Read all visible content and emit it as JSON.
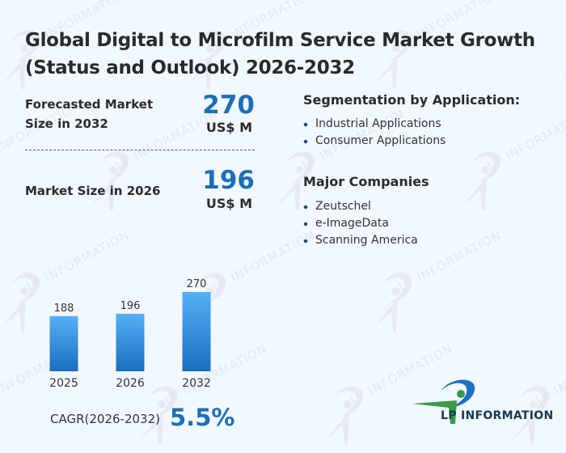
{
  "title": "Global Digital to Microfilm Service Market Growth (Status and Outlook) 2026-2032",
  "stats": {
    "forecast": {
      "label_line1": "Forecasted Market",
      "label_line2": "Size in 2032",
      "value": "270",
      "unit": "US$ M"
    },
    "current": {
      "label": "Market Size in 2026",
      "value": "196",
      "unit": "US$ M"
    }
  },
  "segmentation": {
    "title": "Segmentation by Application:",
    "items": [
      "Industrial Applications",
      "Consumer Applications"
    ]
  },
  "companies": {
    "title": "Major Companies",
    "items": [
      "Zeutschel",
      "e-ImageData",
      "Scanning America"
    ]
  },
  "cagr": {
    "label": "CAGR(2026-2032)",
    "value": "5.5%"
  },
  "logo": {
    "text": "LP INFORMATION"
  },
  "watermark_text": "LP INFORMATION",
  "colors": {
    "accent": "#1b6fb8",
    "bar_top": "#56b0f5",
    "bar_bottom": "#1a6fbf",
    "logo_green": "#3a9a4a",
    "logo_blue": "#1e6fc0"
  },
  "chart_data": {
    "type": "bar",
    "title": "",
    "categories": [
      "2025",
      "2026",
      "2032"
    ],
    "values": [
      188,
      196,
      270
    ],
    "xlabel": "",
    "ylabel": "",
    "unit": "US$ M",
    "ylim": [
      0,
      270
    ],
    "grid": false,
    "data_labels": true
  }
}
